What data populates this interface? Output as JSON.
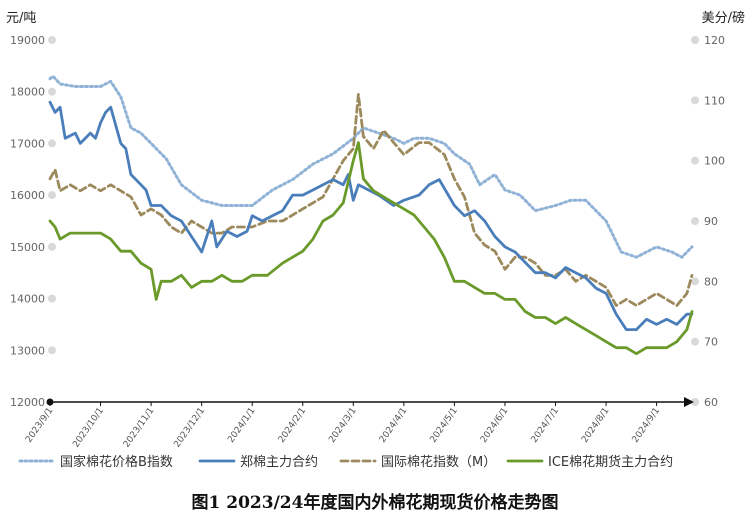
{
  "chart_data": {
    "type": "line",
    "title": "图1 2023/24年度国内外棉花期现货价格走势图",
    "left_axis": {
      "unit_label": "元/吨",
      "ylim": [
        12000,
        19000
      ],
      "ticks": [
        "19000",
        "18000",
        "17000",
        "16000",
        "15000",
        "14000",
        "13000",
        "12000"
      ]
    },
    "right_axis": {
      "unit_label": "美分/磅",
      "ylim": [
        60,
        120
      ],
      "ticks": [
        "120",
        "110",
        "100",
        "90",
        "80",
        "70",
        "60"
      ]
    },
    "x_ticks": [
      "2023/9/1",
      "2023/10/1",
      "2023/11/1",
      "2023/12/1",
      "2024/1/1",
      "2024/2/1",
      "2024/3/1",
      "2024/4/1",
      "2024/5/1",
      "2024/6/1",
      "2024/7/1",
      "2024/8/1",
      "2024/9/1"
    ],
    "legend": [
      {
        "name": "国家棉花价格B指数",
        "color": "#8fb2d6",
        "style": "dotted",
        "axis": "left"
      },
      {
        "name": "郑棉主力合约",
        "color": "#4a7ebb",
        "style": "solid",
        "axis": "left"
      },
      {
        "name": "国际棉花指数（M）",
        "color": "#9c8a5c",
        "style": "dashed",
        "axis": "right"
      },
      {
        "name": "ICE棉花期货主力合约",
        "color": "#6a9a2a",
        "style": "solid",
        "axis": "right"
      }
    ],
    "series": [
      {
        "name": "国家棉花价格B指数",
        "axis": "left",
        "points": [
          [
            0,
            18250
          ],
          [
            0.06,
            18300
          ],
          [
            0.2,
            18150
          ],
          [
            0.5,
            18100
          ],
          [
            1.0,
            18100
          ],
          [
            1.2,
            18200
          ],
          [
            1.4,
            17900
          ],
          [
            1.6,
            17300
          ],
          [
            1.8,
            17200
          ],
          [
            2.0,
            17000
          ],
          [
            2.3,
            16700
          ],
          [
            2.6,
            16200
          ],
          [
            3.0,
            15900
          ],
          [
            3.4,
            15800
          ],
          [
            3.7,
            15800
          ],
          [
            4.0,
            15800
          ],
          [
            4.4,
            16100
          ],
          [
            4.8,
            16300
          ],
          [
            5.2,
            16600
          ],
          [
            5.6,
            16800
          ],
          [
            6.0,
            17100
          ],
          [
            6.2,
            17300
          ],
          [
            6.5,
            17200
          ],
          [
            6.8,
            17100
          ],
          [
            7.0,
            17000
          ],
          [
            7.2,
            17100
          ],
          [
            7.5,
            17100
          ],
          [
            7.8,
            17000
          ],
          [
            8.0,
            16800
          ],
          [
            8.3,
            16600
          ],
          [
            8.5,
            16200
          ],
          [
            8.8,
            16400
          ],
          [
            9.0,
            16100
          ],
          [
            9.3,
            16000
          ],
          [
            9.6,
            15700
          ],
          [
            10.0,
            15800
          ],
          [
            10.3,
            15900
          ],
          [
            10.6,
            15900
          ],
          [
            11.0,
            15500
          ],
          [
            11.3,
            14900
          ],
          [
            11.6,
            14800
          ],
          [
            11.8,
            14900
          ],
          [
            12.0,
            15000
          ],
          [
            12.3,
            14900
          ],
          [
            12.5,
            14800
          ],
          [
            12.7,
            15000
          ]
        ]
      },
      {
        "name": "郑棉主力合约",
        "axis": "left",
        "points": [
          [
            0,
            17800
          ],
          [
            0.1,
            17600
          ],
          [
            0.2,
            17700
          ],
          [
            0.3,
            17100
          ],
          [
            0.5,
            17200
          ],
          [
            0.6,
            17000
          ],
          [
            0.8,
            17200
          ],
          [
            0.9,
            17100
          ],
          [
            1.0,
            17400
          ],
          [
            1.1,
            17600
          ],
          [
            1.2,
            17700
          ],
          [
            1.4,
            17000
          ],
          [
            1.5,
            16900
          ],
          [
            1.6,
            16400
          ],
          [
            1.8,
            16200
          ],
          [
            1.9,
            16100
          ],
          [
            2.0,
            15800
          ],
          [
            2.2,
            15800
          ],
          [
            2.4,
            15600
          ],
          [
            2.6,
            15500
          ],
          [
            2.8,
            15200
          ],
          [
            3.0,
            14900
          ],
          [
            3.2,
            15500
          ],
          [
            3.3,
            15000
          ],
          [
            3.5,
            15300
          ],
          [
            3.7,
            15200
          ],
          [
            3.9,
            15300
          ],
          [
            4.0,
            15600
          ],
          [
            4.2,
            15500
          ],
          [
            4.4,
            15600
          ],
          [
            4.6,
            15700
          ],
          [
            4.8,
            16000
          ],
          [
            5.0,
            16000
          ],
          [
            5.2,
            16100
          ],
          [
            5.4,
            16200
          ],
          [
            5.6,
            16300
          ],
          [
            5.8,
            16200
          ],
          [
            5.9,
            16400
          ],
          [
            6.0,
            15900
          ],
          [
            6.1,
            16200
          ],
          [
            6.3,
            16100
          ],
          [
            6.5,
            16000
          ],
          [
            6.8,
            15800
          ],
          [
            7.0,
            15900
          ],
          [
            7.3,
            16000
          ],
          [
            7.5,
            16200
          ],
          [
            7.7,
            16300
          ],
          [
            8.0,
            15800
          ],
          [
            8.2,
            15600
          ],
          [
            8.4,
            15700
          ],
          [
            8.6,
            15500
          ],
          [
            8.8,
            15200
          ],
          [
            9.0,
            15000
          ],
          [
            9.2,
            14900
          ],
          [
            9.4,
            14700
          ],
          [
            9.6,
            14500
          ],
          [
            9.8,
            14500
          ],
          [
            10.0,
            14400
          ],
          [
            10.2,
            14600
          ],
          [
            10.4,
            14500
          ],
          [
            10.6,
            14400
          ],
          [
            10.8,
            14200
          ],
          [
            11.0,
            14100
          ],
          [
            11.2,
            13700
          ],
          [
            11.4,
            13400
          ],
          [
            11.6,
            13400
          ],
          [
            11.8,
            13600
          ],
          [
            12.0,
            13500
          ],
          [
            12.2,
            13600
          ],
          [
            12.4,
            13500
          ],
          [
            12.6,
            13700
          ],
          [
            12.7,
            13700
          ]
        ]
      },
      {
        "name": "国际棉花指数（M）",
        "axis": "right",
        "points": [
          [
            0,
            97
          ],
          [
            0.1,
            98.5
          ],
          [
            0.2,
            95
          ],
          [
            0.4,
            96
          ],
          [
            0.6,
            95
          ],
          [
            0.8,
            96
          ],
          [
            1.0,
            95
          ],
          [
            1.2,
            96
          ],
          [
            1.4,
            95
          ],
          [
            1.6,
            94
          ],
          [
            1.8,
            91
          ],
          [
            2.0,
            92
          ],
          [
            2.2,
            91
          ],
          [
            2.4,
            89
          ],
          [
            2.6,
            88
          ],
          [
            2.8,
            90
          ],
          [
            3.0,
            89
          ],
          [
            3.2,
            88
          ],
          [
            3.4,
            88
          ],
          [
            3.6,
            89
          ],
          [
            3.8,
            89
          ],
          [
            4.0,
            89
          ],
          [
            4.3,
            90
          ],
          [
            4.6,
            90
          ],
          [
            4.8,
            91
          ],
          [
            5.0,
            92
          ],
          [
            5.2,
            93
          ],
          [
            5.4,
            94
          ],
          [
            5.6,
            97
          ],
          [
            5.8,
            100
          ],
          [
            6.0,
            102
          ],
          [
            6.1,
            111
          ],
          [
            6.2,
            104
          ],
          [
            6.4,
            102
          ],
          [
            6.6,
            105
          ],
          [
            6.8,
            103
          ],
          [
            7.0,
            101
          ],
          [
            7.3,
            103
          ],
          [
            7.5,
            103
          ],
          [
            7.8,
            101
          ],
          [
            8.0,
            97
          ],
          [
            8.2,
            94
          ],
          [
            8.4,
            88
          ],
          [
            8.6,
            86
          ],
          [
            8.8,
            85
          ],
          [
            9.0,
            82
          ],
          [
            9.2,
            84
          ],
          [
            9.4,
            84
          ],
          [
            9.6,
            83
          ],
          [
            9.8,
            81
          ],
          [
            10.0,
            81
          ],
          [
            10.2,
            82
          ],
          [
            10.4,
            80
          ],
          [
            10.6,
            81
          ],
          [
            10.8,
            80
          ],
          [
            11.0,
            79
          ],
          [
            11.2,
            76
          ],
          [
            11.4,
            77
          ],
          [
            11.6,
            76
          ],
          [
            11.8,
            77
          ],
          [
            12.0,
            78
          ],
          [
            12.2,
            77
          ],
          [
            12.4,
            76
          ],
          [
            12.6,
            78
          ],
          [
            12.7,
            81
          ]
        ]
      },
      {
        "name": "ICE棉花期货主力合约",
        "axis": "right",
        "points": [
          [
            0,
            90
          ],
          [
            0.1,
            89
          ],
          [
            0.2,
            87
          ],
          [
            0.4,
            88
          ],
          [
            0.6,
            88
          ],
          [
            0.8,
            88
          ],
          [
            1.0,
            88
          ],
          [
            1.2,
            87
          ],
          [
            1.4,
            85
          ],
          [
            1.6,
            85
          ],
          [
            1.8,
            83
          ],
          [
            2.0,
            82
          ],
          [
            2.1,
            77
          ],
          [
            2.2,
            80
          ],
          [
            2.4,
            80
          ],
          [
            2.6,
            81
          ],
          [
            2.8,
            79
          ],
          [
            3.0,
            80
          ],
          [
            3.2,
            80
          ],
          [
            3.4,
            81
          ],
          [
            3.6,
            80
          ],
          [
            3.8,
            80
          ],
          [
            4.0,
            81
          ],
          [
            4.3,
            81
          ],
          [
            4.6,
            83
          ],
          [
            4.8,
            84
          ],
          [
            5.0,
            85
          ],
          [
            5.2,
            87
          ],
          [
            5.4,
            90
          ],
          [
            5.6,
            91
          ],
          [
            5.8,
            93
          ],
          [
            6.0,
            100
          ],
          [
            6.1,
            103
          ],
          [
            6.2,
            97
          ],
          [
            6.4,
            95
          ],
          [
            6.6,
            94
          ],
          [
            6.8,
            93
          ],
          [
            7.0,
            92
          ],
          [
            7.2,
            91
          ],
          [
            7.4,
            89
          ],
          [
            7.6,
            87
          ],
          [
            7.8,
            84
          ],
          [
            8.0,
            80
          ],
          [
            8.2,
            80
          ],
          [
            8.4,
            79
          ],
          [
            8.6,
            78
          ],
          [
            8.8,
            78
          ],
          [
            9.0,
            77
          ],
          [
            9.2,
            77
          ],
          [
            9.4,
            75
          ],
          [
            9.6,
            74
          ],
          [
            9.8,
            74
          ],
          [
            10.0,
            73
          ],
          [
            10.2,
            74
          ],
          [
            10.4,
            73
          ],
          [
            10.6,
            72
          ],
          [
            10.8,
            71
          ],
          [
            11.0,
            70
          ],
          [
            11.2,
            69
          ],
          [
            11.4,
            69
          ],
          [
            11.6,
            68
          ],
          [
            11.8,
            69
          ],
          [
            12.0,
            69
          ],
          [
            12.2,
            69
          ],
          [
            12.4,
            70
          ],
          [
            12.6,
            72
          ],
          [
            12.7,
            75
          ]
        ]
      }
    ]
  }
}
